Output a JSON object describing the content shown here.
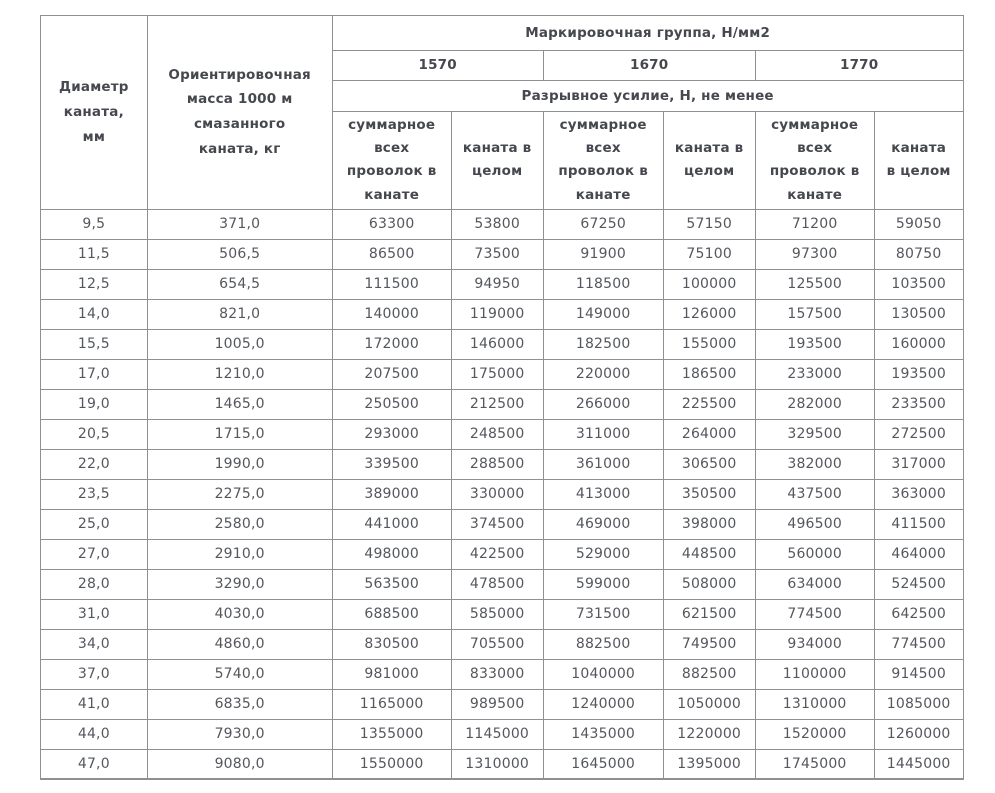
{
  "chart_data": {
    "type": "table",
    "header": {
      "diameter": "Диаметр каната, мм",
      "mass": "Ориентировочная масса 1000 м смазанного каната, кг",
      "group_title": "Маркировочная группа, Н/мм2",
      "groups": [
        "1570",
        "1670",
        "1770"
      ],
      "breaking_title": "Разрывное усилие, Н, не менее",
      "sub_total_wires": "суммарное всех проволок в канате",
      "sub_whole_rope": "каната в целом"
    },
    "rows": [
      [
        "9,5",
        "371,0",
        "63300",
        "53800",
        "67250",
        "57150",
        "71200",
        "59050"
      ],
      [
        "11,5",
        "506,5",
        "86500",
        "73500",
        "91900",
        "75100",
        "97300",
        "80750"
      ],
      [
        "12,5",
        "654,5",
        "111500",
        "94950",
        "118500",
        "100000",
        "125500",
        "103500"
      ],
      [
        "14,0",
        "821,0",
        "140000",
        "119000",
        "149000",
        "126000",
        "157500",
        "130500"
      ],
      [
        "15,5",
        "1005,0",
        "172000",
        "146000",
        "182500",
        "155000",
        "193500",
        "160000"
      ],
      [
        "17,0",
        "1210,0",
        "207500",
        "175000",
        "220000",
        "186500",
        "233000",
        "193500"
      ],
      [
        "19,0",
        "1465,0",
        "250500",
        "212500",
        "266000",
        "225500",
        "282000",
        "233500"
      ],
      [
        "20,5",
        "1715,0",
        "293000",
        "248500",
        "311000",
        "264000",
        "329500",
        "272500"
      ],
      [
        "22,0",
        "1990,0",
        "339500",
        "288500",
        "361000",
        "306500",
        "382000",
        "317000"
      ],
      [
        "23,5",
        "2275,0",
        "389000",
        "330000",
        "413000",
        "350500",
        "437500",
        "363000"
      ],
      [
        "25,0",
        "2580,0",
        "441000",
        "374500",
        "469000",
        "398000",
        "496500",
        "411500"
      ],
      [
        "27,0",
        "2910,0",
        "498000",
        "422500",
        "529000",
        "448500",
        "560000",
        "464000"
      ],
      [
        "28,0",
        "3290,0",
        "563500",
        "478500",
        "599000",
        "508000",
        "634000",
        "524500"
      ],
      [
        "31,0",
        "4030,0",
        "688500",
        "585000",
        "731500",
        "621500",
        "774500",
        "642500"
      ],
      [
        "34,0",
        "4860,0",
        "830500",
        "705500",
        "882500",
        "749500",
        "934000",
        "774500"
      ],
      [
        "37,0",
        "5740,0",
        "981000",
        "833000",
        "1040000",
        "882500",
        "1100000",
        "914500"
      ],
      [
        "41,0",
        "6835,0",
        "1165000",
        "989500",
        "1240000",
        "1050000",
        "1310000",
        "1085000"
      ],
      [
        "44,0",
        "7930,0",
        "1355000",
        "1145000",
        "1435000",
        "1220000",
        "1520000",
        "1260000"
      ],
      [
        "47,0",
        "9080,0",
        "1550000",
        "1310000",
        "1645000",
        "1395000",
        "1745000",
        "1445000"
      ]
    ]
  },
  "colors": {
    "border": "#8f9092",
    "header_text": "#45484e",
    "cell_text": "#54575d",
    "background": "#ffffff"
  }
}
